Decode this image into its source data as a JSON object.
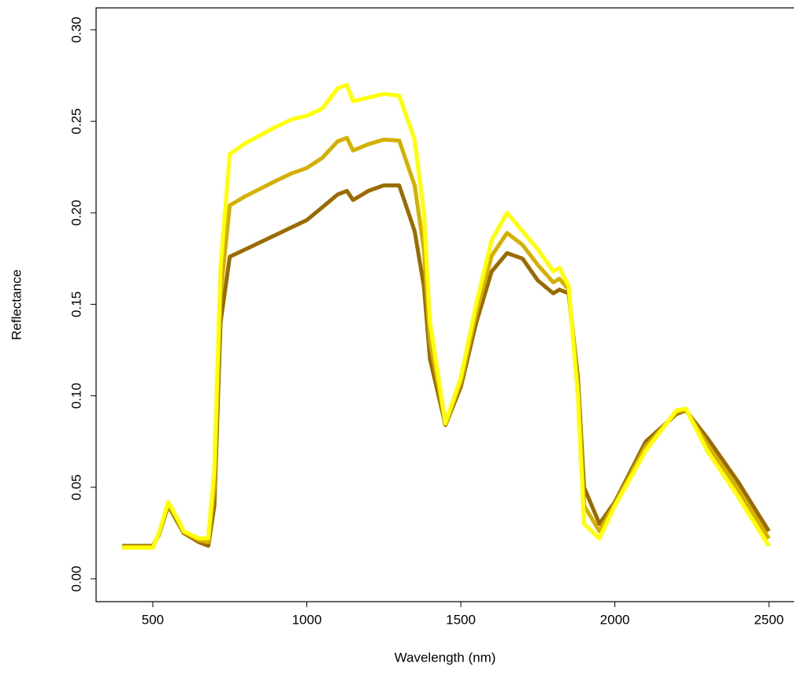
{
  "chart_data": {
    "type": "line",
    "x_label": "Wavelength (nm)",
    "y_label": "Reflectance",
    "x": [
      400,
      450,
      500,
      520,
      550,
      580,
      600,
      650,
      680,
      700,
      720,
      750,
      800,
      900,
      950,
      1000,
      1050,
      1100,
      1130,
      1150,
      1200,
      1250,
      1300,
      1350,
      1380,
      1400,
      1450,
      1500,
      1550,
      1600,
      1650,
      1700,
      1750,
      1800,
      1820,
      1850,
      1880,
      1900,
      1950,
      2000,
      2100,
      2200,
      2230,
      2300,
      2400,
      2500
    ],
    "series": [
      {
        "color": "#9a6b00",
        "values": [
          0.018,
          0.018,
          0.018,
          0.024,
          0.04,
          0.031,
          0.025,
          0.02,
          0.018,
          0.04,
          0.14,
          0.176,
          0.18,
          0.188,
          0.192,
          0.196,
          0.203,
          0.21,
          0.212,
          0.207,
          0.212,
          0.215,
          0.215,
          0.19,
          0.16,
          0.12,
          0.084,
          0.105,
          0.14,
          0.168,
          0.178,
          0.175,
          0.163,
          0.156,
          0.158,
          0.156,
          0.11,
          0.05,
          0.03,
          0.042,
          0.075,
          0.09,
          0.092,
          0.077,
          0.053,
          0.026
        ]
      },
      {
        "color": "#d4b000",
        "values": [
          0.0175,
          0.0175,
          0.0175,
          0.0245,
          0.041,
          0.032,
          0.0255,
          0.021,
          0.02,
          0.05,
          0.155,
          0.204,
          0.209,
          0.2175,
          0.2215,
          0.2245,
          0.23,
          0.239,
          0.241,
          0.234,
          0.2375,
          0.24,
          0.2395,
          0.215,
          0.18,
          0.13,
          0.0845,
          0.1075,
          0.145,
          0.1765,
          0.189,
          0.1825,
          0.1715,
          0.162,
          0.164,
          0.158,
          0.105,
          0.04,
          0.026,
          0.041,
          0.0725,
          0.091,
          0.0925,
          0.0735,
          0.049,
          0.022
        ]
      },
      {
        "color": "#ffff00",
        "values": [
          0.017,
          0.017,
          0.017,
          0.025,
          0.042,
          0.033,
          0.026,
          0.022,
          0.022,
          0.06,
          0.17,
          0.232,
          0.238,
          0.247,
          0.251,
          0.253,
          0.257,
          0.268,
          0.27,
          0.261,
          0.263,
          0.265,
          0.264,
          0.24,
          0.2,
          0.14,
          0.085,
          0.11,
          0.15,
          0.185,
          0.2,
          0.19,
          0.18,
          0.168,
          0.17,
          0.16,
          0.1,
          0.03,
          0.022,
          0.04,
          0.07,
          0.092,
          0.093,
          0.07,
          0.045,
          0.018
        ]
      }
    ],
    "xlim": [
      316,
      2584
    ],
    "ylim": [
      -0.0125,
      0.312
    ],
    "xticks": [
      500,
      1000,
      1500,
      2000,
      2500
    ],
    "yticks": [
      {
        "value": 0,
        "label": "0.00"
      },
      0.05,
      {
        "value": 0.1,
        "label": "0.10"
      },
      0.15,
      {
        "value": 0.2,
        "label": "0.20"
      },
      0.25,
      {
        "value": 0.3,
        "label": "0.30"
      }
    ]
  }
}
